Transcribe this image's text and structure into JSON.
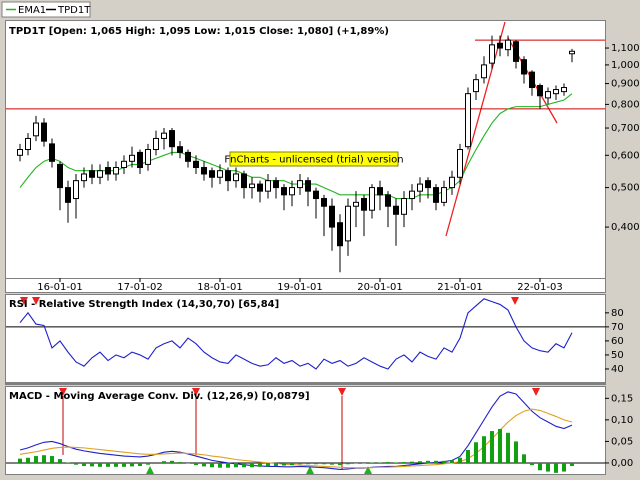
{
  "chart_data": [
    {
      "type": "candlestick",
      "title": "TPD1T [Open: 1,065  High: 1,095  Low: 1,015  Close: 1,080] (+1,89%)",
      "annotation": "FnCharts - unlicensed (trial) version",
      "categories": [
        null,
        null,
        null,
        null,
        null,
        "16-01-01",
        null,
        null,
        null,
        null,
        null,
        null,
        null,
        null,
        null,
        "17-01-02",
        null,
        null,
        null,
        null,
        null,
        null,
        null,
        null,
        null,
        "18-01-01",
        null,
        null,
        null,
        null,
        null,
        null,
        null,
        null,
        null,
        "19-01-01",
        null,
        null,
        null,
        null,
        null,
        null,
        null,
        null,
        null,
        "20-01-01",
        null,
        null,
        null,
        null,
        null,
        null,
        null,
        null,
        null,
        "21-01-01",
        null,
        null,
        null,
        null,
        null,
        null,
        null,
        null,
        null,
        "22-01-03",
        null,
        null,
        null,
        null
      ],
      "series": [
        {
          "name": "EMA1",
          "color": "#22b522",
          "values": [
            0.5,
            0.53,
            0.56,
            0.58,
            0.59,
            0.58,
            0.56,
            0.55,
            0.55,
            0.55,
            0.55,
            0.55,
            0.55,
            0.56,
            0.57,
            0.57,
            0.58,
            0.59,
            0.6,
            0.61,
            0.61,
            0.6,
            0.59,
            0.58,
            0.57,
            0.56,
            0.55,
            0.55,
            0.54,
            0.53,
            0.53,
            0.52,
            0.52,
            0.52,
            0.51,
            0.51,
            0.51,
            0.51,
            0.5,
            0.49,
            0.48,
            0.48,
            0.48,
            0.48,
            0.48,
            0.48,
            0.48,
            0.47,
            0.47,
            0.47,
            0.48,
            0.48,
            0.48,
            0.49,
            0.5,
            0.52,
            0.57,
            0.62,
            0.67,
            0.72,
            0.76,
            0.78,
            0.79,
            0.79,
            0.79,
            0.79,
            0.8,
            0.81,
            0.82,
            0.85
          ]
        },
        {
          "name": "TPD1T",
          "color": "#000000",
          "open": [
            0.6,
            0.62,
            0.67,
            0.72,
            0.64,
            0.57,
            0.5,
            0.47,
            0.52,
            0.55,
            0.53,
            0.56,
            0.54,
            0.56,
            0.58,
            0.61,
            0.57,
            0.62,
            0.66,
            0.69,
            0.63,
            0.61,
            0.58,
            0.56,
            0.55,
            0.53,
            0.55,
            0.52,
            0.54,
            0.5,
            0.51,
            0.49,
            0.52,
            0.5,
            0.48,
            0.5,
            0.52,
            0.49,
            0.47,
            0.45,
            0.41,
            0.37,
            0.45,
            0.47,
            0.44,
            0.5,
            0.48,
            0.45,
            0.43,
            0.47,
            0.49,
            0.52,
            0.5,
            0.46,
            0.5,
            0.53,
            0.63,
            0.86,
            0.93,
            1.01,
            1.13,
            1.09,
            1.14,
            1.03,
            0.96,
            0.89,
            0.83,
            0.85,
            0.86,
            1.065
          ],
          "high": [
            0.64,
            0.68,
            0.75,
            0.74,
            0.66,
            0.58,
            0.52,
            0.54,
            0.56,
            0.57,
            0.57,
            0.58,
            0.58,
            0.6,
            0.63,
            0.62,
            0.64,
            0.69,
            0.7,
            0.7,
            0.65,
            0.62,
            0.6,
            0.58,
            0.56,
            0.57,
            0.56,
            0.56,
            0.55,
            0.53,
            0.52,
            0.54,
            0.53,
            0.51,
            0.52,
            0.54,
            0.53,
            0.5,
            0.48,
            0.47,
            0.43,
            0.47,
            0.49,
            0.48,
            0.51,
            0.52,
            0.49,
            0.47,
            0.49,
            0.51,
            0.53,
            0.53,
            0.51,
            0.52,
            0.55,
            0.64,
            0.88,
            0.95,
            1.05,
            1.18,
            1.18,
            1.18,
            1.15,
            1.05,
            0.97,
            0.9,
            0.88,
            0.89,
            0.9,
            1.095
          ],
          "low": [
            0.58,
            0.6,
            0.65,
            0.63,
            0.56,
            0.44,
            0.41,
            0.42,
            0.5,
            0.51,
            0.51,
            0.52,
            0.52,
            0.54,
            0.56,
            0.54,
            0.55,
            0.6,
            0.62,
            0.6,
            0.59,
            0.56,
            0.54,
            0.52,
            0.5,
            0.51,
            0.49,
            0.5,
            0.47,
            0.47,
            0.46,
            0.47,
            0.47,
            0.44,
            0.45,
            0.48,
            0.45,
            0.42,
            0.38,
            0.35,
            0.31,
            0.34,
            0.4,
            0.38,
            0.42,
            0.44,
            0.4,
            0.36,
            0.4,
            0.44,
            0.46,
            0.47,
            0.44,
            0.45,
            0.48,
            0.51,
            0.62,
            0.82,
            0.9,
            0.98,
            1.05,
            1.05,
            0.98,
            0.9,
            0.84,
            0.78,
            0.8,
            0.82,
            0.84,
            1.015
          ],
          "close": [
            0.62,
            0.66,
            0.72,
            0.65,
            0.58,
            0.5,
            0.46,
            0.52,
            0.54,
            0.53,
            0.55,
            0.54,
            0.56,
            0.58,
            0.6,
            0.56,
            0.62,
            0.66,
            0.68,
            0.63,
            0.61,
            0.58,
            0.56,
            0.54,
            0.53,
            0.55,
            0.52,
            0.54,
            0.5,
            0.51,
            0.49,
            0.52,
            0.5,
            0.48,
            0.5,
            0.52,
            0.49,
            0.47,
            0.45,
            0.4,
            0.36,
            0.45,
            0.46,
            0.44,
            0.5,
            0.48,
            0.45,
            0.43,
            0.47,
            0.49,
            0.51,
            0.5,
            0.46,
            0.5,
            0.53,
            0.62,
            0.85,
            0.92,
            1.0,
            1.12,
            1.1,
            1.15,
            1.02,
            0.95,
            0.88,
            0.84,
            0.86,
            0.87,
            0.88,
            1.08
          ]
        }
      ],
      "ylim": [
        0.3,
        1.26
      ],
      "log_scale": true,
      "yticks": [
        {
          "value": 0.4,
          "label": "0,400"
        },
        {
          "value": 0.5,
          "label": "0,500"
        },
        {
          "value": 0.6,
          "label": "0,600"
        },
        {
          "value": 0.7,
          "label": "0,700"
        },
        {
          "value": 0.8,
          "label": "0,800"
        },
        {
          "value": 0.9,
          "label": "0,900"
        },
        {
          "value": 1.0,
          "label": "1,000"
        },
        {
          "value": 1.1,
          "label": "1,100"
        }
      ],
      "hlines": [
        0.78,
        1.15
      ],
      "hline_color": "#cc0000"
    },
    {
      "type": "line",
      "title": "RSI - Relative Strength Index (14,30,70) [65,84]",
      "series": [
        {
          "color": "#2020cc",
          "values": [
            73,
            80,
            72,
            71,
            55,
            60,
            52,
            45,
            42,
            48,
            52,
            46,
            50,
            48,
            52,
            50,
            47,
            55,
            58,
            60,
            55,
            62,
            58,
            52,
            48,
            45,
            44,
            50,
            47,
            44,
            42,
            43,
            48,
            44,
            46,
            42,
            44,
            40,
            47,
            44,
            46,
            42,
            44,
            48,
            45,
            42,
            40,
            47,
            50,
            45,
            52,
            49,
            47,
            55,
            52,
            62,
            80,
            85,
            90,
            88,
            86,
            82,
            70,
            60,
            55,
            53,
            52,
            58,
            55,
            65.84
          ]
        }
      ],
      "ylim": [
        30,
        92
      ],
      "yticks": [
        40,
        50,
        60,
        70,
        80
      ],
      "hlines": [
        70,
        30
      ],
      "hline_color": "#000000"
    },
    {
      "type": "macd",
      "title": "MACD - Moving Average Conv. Div. (12,26,9) [0,0879]",
      "series": [
        {
          "color": "#2020cc",
          "values": [
            0.03,
            0.035,
            0.042,
            0.048,
            0.05,
            0.045,
            0.038,
            0.032,
            0.028,
            0.025,
            0.022,
            0.02,
            0.018,
            0.016,
            0.015,
            0.014,
            0.016,
            0.02,
            0.025,
            0.027,
            0.025,
            0.021,
            0.016,
            0.011,
            0.006,
            0.003,
            0.0,
            -0.002,
            -0.004,
            -0.006,
            -0.007,
            -0.008,
            -0.008,
            -0.009,
            -0.009,
            -0.008,
            -0.009,
            -0.01,
            -0.011,
            -0.013,
            -0.015,
            -0.014,
            -0.012,
            -0.012,
            -0.01,
            -0.009,
            -0.008,
            -0.008,
            -0.006,
            -0.004,
            -0.002,
            0.0,
            0.001,
            0.003,
            0.006,
            0.015,
            0.04,
            0.07,
            0.1,
            0.13,
            0.155,
            0.165,
            0.16,
            0.14,
            0.12,
            0.105,
            0.095,
            0.085,
            0.08,
            0.0879
          ]
        },
        {
          "color": "#e0a020",
          "values": [
            0.02,
            0.023,
            0.026,
            0.03,
            0.034,
            0.036,
            0.037,
            0.036,
            0.035,
            0.033,
            0.031,
            0.029,
            0.027,
            0.025,
            0.023,
            0.021,
            0.02,
            0.02,
            0.021,
            0.022,
            0.023,
            0.022,
            0.021,
            0.019,
            0.016,
            0.014,
            0.011,
            0.008,
            0.006,
            0.004,
            0.002,
            0.0,
            -0.001,
            -0.003,
            -0.004,
            -0.005,
            -0.006,
            -0.007,
            -0.008,
            -0.009,
            -0.01,
            -0.011,
            -0.011,
            -0.011,
            -0.011,
            -0.01,
            -0.01,
            -0.009,
            -0.008,
            -0.007,
            -0.006,
            -0.005,
            -0.004,
            -0.002,
            0.0,
            0.003,
            0.01,
            0.022,
            0.038,
            0.056,
            0.076,
            0.095,
            0.11,
            0.12,
            0.125,
            0.122,
            0.115,
            0.108,
            0.1,
            0.095
          ]
        },
        {
          "color": "#10a010",
          "style": "bar",
          "values": [
            0.01,
            0.012,
            0.016,
            0.018,
            0.016,
            0.009,
            0.001,
            -0.004,
            -0.007,
            -0.008,
            -0.009,
            -0.009,
            -0.009,
            -0.009,
            -0.008,
            -0.007,
            -0.004,
            0.0,
            0.004,
            0.005,
            0.002,
            -0.001,
            -0.005,
            -0.008,
            -0.01,
            -0.011,
            -0.011,
            -0.01,
            -0.01,
            -0.01,
            -0.009,
            -0.008,
            -0.007,
            -0.006,
            -0.005,
            -0.003,
            -0.003,
            -0.003,
            -0.003,
            -0.004,
            -0.005,
            -0.003,
            -0.001,
            -0.001,
            0.001,
            0.001,
            0.002,
            0.001,
            0.002,
            0.003,
            0.004,
            0.005,
            0.005,
            0.005,
            0.006,
            0.012,
            0.03,
            0.048,
            0.062,
            0.074,
            0.079,
            0.07,
            0.05,
            0.02,
            -0.005,
            -0.017,
            -0.02,
            -0.023,
            -0.02,
            -0.007
          ]
        }
      ],
      "ylim": [
        -0.021,
        0.174
      ],
      "yticks": [
        {
          "value": 0.0,
          "label": "0,00"
        },
        {
          "value": 0.05,
          "label": "0,05"
        },
        {
          "value": 0.1,
          "label": "0,10"
        },
        {
          "value": 0.15,
          "label": "0,15"
        }
      ]
    }
  ]
}
